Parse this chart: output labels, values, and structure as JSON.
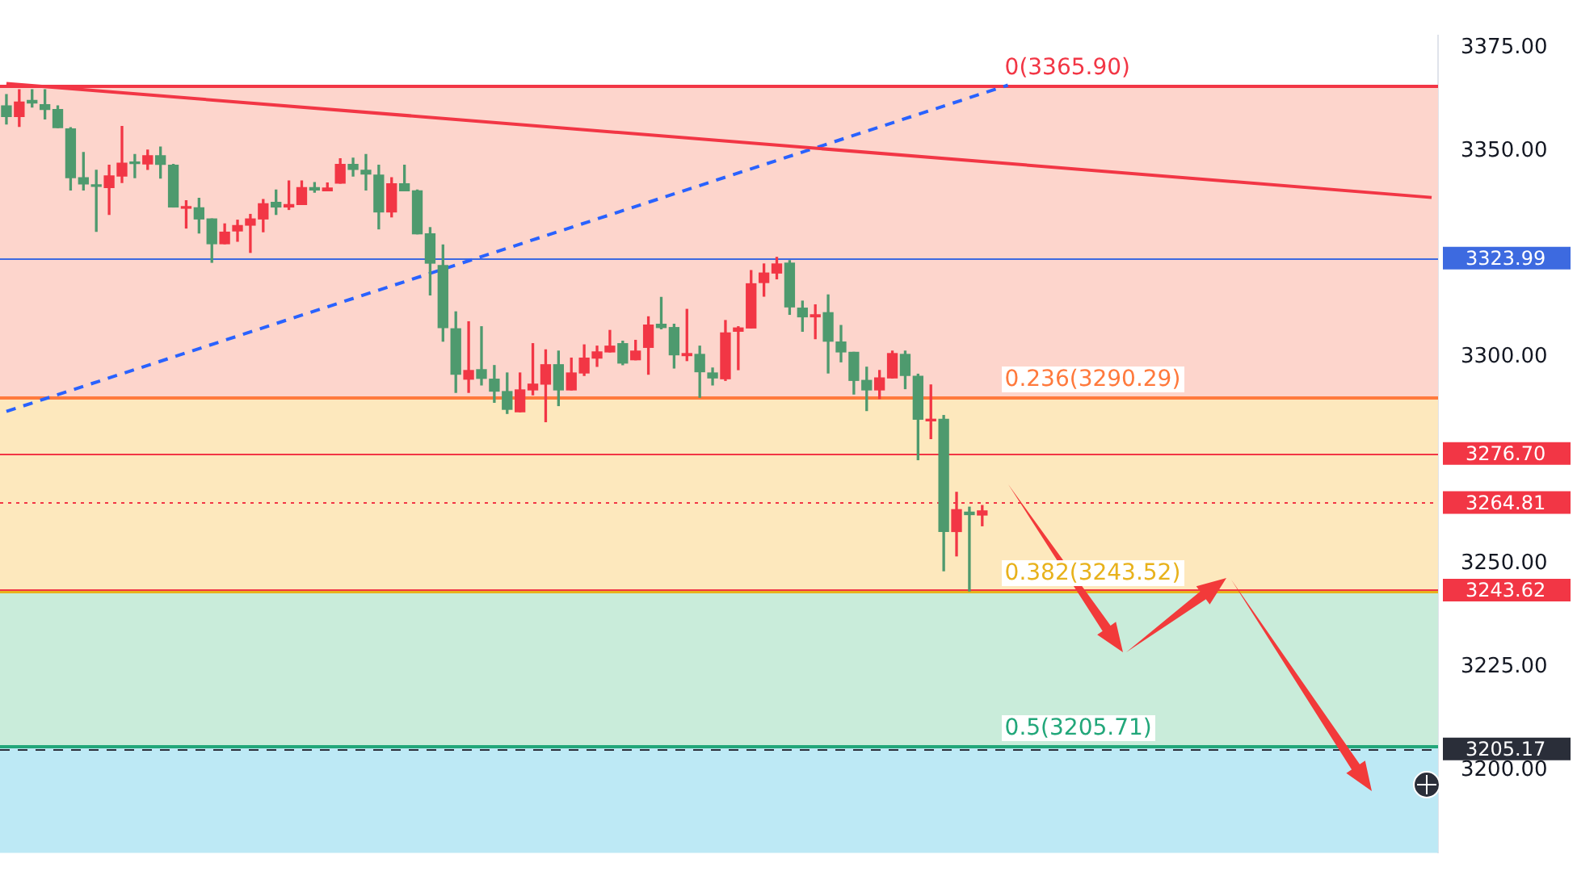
{
  "chart_data": {
    "type": "candlestick",
    "categories": [
      null,
      null,
      null,
      null,
      null,
      null,
      null,
      null,
      null,
      null,
      null,
      null,
      null,
      null,
      null,
      null,
      null,
      null,
      null,
      null,
      null,
      null,
      null,
      null,
      null,
      null,
      null,
      null,
      null,
      null,
      null,
      null,
      null,
      null,
      null,
      null,
      null,
      null,
      null,
      null,
      null,
      null,
      null,
      null,
      null,
      null,
      null,
      null,
      null,
      null,
      null,
      null,
      null,
      null,
      null,
      null,
      null,
      null,
      null,
      null,
      null,
      null,
      null,
      null,
      null,
      null,
      null,
      null,
      null,
      null,
      null,
      null,
      null,
      null,
      null,
      null,
      null,
      null,
      null,
      null,
      null,
      null,
      null,
      null,
      null,
      null,
      null,
      null,
      null,
      null,
      null,
      null,
      null,
      null,
      null,
      null,
      null,
      null,
      null,
      null,
      null,
      null,
      null,
      null,
      null,
      null,
      null,
      null,
      null,
      null,
      null,
      null
    ],
    "ohlc": [
      [
        3360.9,
        3363.6,
        3356.5,
        3358.3
      ],
      [
        3358.3,
        3364.8,
        3355.9,
        3361.8
      ],
      [
        3362.2,
        3364.8,
        3360.6,
        3361.6
      ],
      [
        3361.2,
        3364.8,
        3357.7,
        3360.0
      ],
      [
        3360.0,
        3360.9,
        3355.6,
        3355.6
      ],
      [
        3355.3,
        3355.6,
        3340.5,
        3343.5
      ],
      [
        3343.5,
        3349.6,
        3340.5,
        3342.0
      ],
      [
        3341.7,
        3345.3,
        3330.5,
        3341.4
      ],
      [
        3341.1,
        3346.5,
        3334.6,
        3343.9
      ],
      [
        3343.9,
        3355.9,
        3342.3,
        3347.0
      ],
      [
        3347.3,
        3349.1,
        3343.5,
        3346.9
      ],
      [
        3346.8,
        3350.2,
        3345.5,
        3348.8
      ],
      [
        3348.8,
        3350.9,
        3343.4,
        3346.7
      ],
      [
        3346.5,
        3346.7,
        3336.4,
        3336.4
      ],
      [
        3336.1,
        3337.9,
        3331.3,
        3336.3
      ],
      [
        3336.2,
        3338.5,
        3330.1,
        3333.5
      ],
      [
        3333.5,
        3333.5,
        3323.0,
        3327.5
      ],
      [
        3327.5,
        3332.3,
        3327.5,
        3330.3
      ],
      [
        3330.6,
        3333.2,
        3328.1,
        3331.9
      ],
      [
        3332.0,
        3334.6,
        3325.4,
        3333.5
      ],
      [
        3333.5,
        3338.2,
        3330.4,
        3337.2
      ],
      [
        3337.5,
        3340.5,
        3334.6,
        3336.4
      ],
      [
        3336.4,
        3342.7,
        3335.8,
        3337.0
      ],
      [
        3337.0,
        3342.7,
        3337.0,
        3341.1
      ],
      [
        3341.1,
        3342.3,
        3340.0,
        3340.5
      ],
      [
        3340.3,
        3342.2,
        3340.3,
        3341.0
      ],
      [
        3342.2,
        3348.1,
        3342.2,
        3346.7
      ],
      [
        3346.7,
        3348.2,
        3343.9,
        3345.5
      ],
      [
        3345.3,
        3349.1,
        3340.5,
        3344.4
      ],
      [
        3344.1,
        3346.5,
        3331.1,
        3335.2
      ],
      [
        3335.2,
        3343.5,
        3334.0,
        3342.0
      ],
      [
        3342.0,
        3346.5,
        3340.3,
        3340.3
      ],
      [
        3340.3,
        3340.5,
        3329.9,
        3329.9
      ],
      [
        3329.9,
        3331.4,
        3315.1,
        3322.8
      ],
      [
        3322.2,
        3327.2,
        3303.9,
        3307.2
      ],
      [
        3306.9,
        3311.0,
        3291.5,
        3295.9
      ],
      [
        3294.7,
        3308.6,
        3291.5,
        3296.8
      ],
      [
        3297.0,
        3307.4,
        3293.3,
        3294.9
      ],
      [
        3294.7,
        3298.0,
        3289.1,
        3291.8
      ],
      [
        3291.7,
        3296.2,
        3286.4,
        3287.4
      ],
      [
        3286.8,
        3296.2,
        3286.8,
        3292.1
      ],
      [
        3292.1,
        3303.3,
        3290.9,
        3293.5
      ],
      [
        3293.5,
        3301.8,
        3284.4,
        3298.2
      ],
      [
        3298.2,
        3301.5,
        3288.3,
        3292.1
      ],
      [
        3292.1,
        3299.8,
        3292.1,
        3296.2
      ],
      [
        3296.2,
        3303.0,
        3295.6,
        3299.8
      ],
      [
        3299.8,
        3302.7,
        3297.8,
        3301.3
      ],
      [
        3301.3,
        3306.5,
        3301.3,
        3302.7
      ],
      [
        3303.3,
        3303.9,
        3298.2,
        3298.6
      ],
      [
        3299.4,
        3304.1,
        3299.4,
        3301.5
      ],
      [
        3302.4,
        3309.8,
        3295.9,
        3307.8
      ],
      [
        3308.0,
        3314.5,
        3306.9,
        3307.2
      ],
      [
        3307.2,
        3308.0,
        3297.4,
        3300.6
      ],
      [
        3300.4,
        3311.6,
        3299.2,
        3300.9
      ],
      [
        3300.7,
        3302.7,
        3290.3,
        3296.5
      ],
      [
        3296.2,
        3297.4,
        3293.3,
        3295.0
      ],
      [
        3294.8,
        3308.9,
        3294.4,
        3305.9
      ],
      [
        3306.3,
        3307.4,
        3297.0,
        3307.1
      ],
      [
        3307.1,
        3321.0,
        3307.1,
        3317.8
      ],
      [
        3318.1,
        3322.6,
        3314.8,
        3320.4
      ],
      [
        3320.4,
        3324.2,
        3319.0,
        3322.6
      ],
      [
        3322.8,
        3323.4,
        3310.4,
        3312.2
      ],
      [
        3311.9,
        3313.6,
        3306.3,
        3309.8
      ],
      [
        3309.8,
        3312.7,
        3304.5,
        3310.3
      ],
      [
        3310.8,
        3315.1,
        3296.2,
        3303.9
      ],
      [
        3303.7,
        3307.7,
        3298.9,
        3301.3
      ],
      [
        3301.2,
        3301.2,
        3291.1,
        3294.4
      ],
      [
        3294.4,
        3297.6,
        3287.1,
        3292.1
      ],
      [
        3292.1,
        3296.8,
        3290.0,
        3295.0
      ],
      [
        3295.0,
        3301.5,
        3295.0,
        3300.9
      ],
      [
        3300.7,
        3301.5,
        3292.4,
        3295.6
      ],
      [
        3295.4,
        3295.9,
        3275.2,
        3285.0
      ],
      [
        3284.6,
        3293.3,
        3280.3,
        3285.0
      ],
      [
        3285.0,
        3285.9,
        3248.3,
        3257.8
      ],
      [
        3257.8,
        3267.3,
        3251.9,
        3263.1
      ],
      [
        3262.5,
        3263.7,
        3243.4,
        3261.9
      ],
      [
        3261.8,
        3264.1,
        3259.2,
        3262.8
      ],
      null,
      null,
      null,
      null,
      null,
      null,
      null,
      null,
      null,
      null,
      null,
      null,
      null,
      null,
      null,
      null,
      null,
      null,
      null,
      null,
      null,
      null,
      null,
      null,
      null,
      null,
      null,
      null,
      null,
      null,
      null,
      null,
      null,
      null,
      null
    ],
    "colors": [
      "#4e9a6e",
      "#f23645",
      "#4e9a6e",
      "#4e9a6e",
      "#4e9a6e",
      "#4e9a6e",
      "#4e9a6e",
      "#4e9a6e",
      "#f23645",
      "#f23645",
      "#4e9a6e",
      "#f23645",
      "#4e9a6e",
      "#4e9a6e",
      "#f23645",
      "#4e9a6e",
      "#4e9a6e",
      "#f23645",
      "#f23645",
      "#f23645",
      "#f23645",
      "#4e9a6e",
      "#f23645",
      "#f23645",
      "#4e9a6e",
      "#f23645",
      "#f23645",
      "#4e9a6e",
      "#4e9a6e",
      "#4e9a6e",
      "#f23645",
      "#4e9a6e",
      "#4e9a6e",
      "#4e9a6e",
      "#4e9a6e",
      "#4e9a6e",
      "#f23645",
      "#4e9a6e",
      "#4e9a6e",
      "#4e9a6e",
      "#f23645",
      "#f23645",
      "#f23645",
      "#4e9a6e",
      "#f23645",
      "#f23645",
      "#f23645",
      "#f23645",
      "#4e9a6e",
      "#f23645",
      "#f23645",
      "#4e9a6e",
      "#4e9a6e",
      "#f23645",
      "#4e9a6e",
      "#4e9a6e",
      "#f23645",
      "#f23645",
      "#f23645",
      "#f23645",
      "#f23645",
      "#4e9a6e",
      "#4e9a6e",
      "#f23645",
      "#4e9a6e",
      "#4e9a6e",
      "#4e9a6e",
      "#4e9a6e",
      "#f23645",
      "#f23645",
      "#4e9a6e",
      "#4e9a6e",
      "#f23645",
      "#4e9a6e",
      "#f23645",
      "#4e9a6e",
      "#f23645",
      null,
      null,
      null,
      null,
      null,
      null,
      null,
      null,
      null,
      null,
      null,
      null,
      null,
      null,
      null,
      null,
      null,
      null,
      null,
      null,
      null,
      null,
      null,
      null,
      null,
      null,
      null,
      null,
      null,
      null,
      null,
      null,
      null,
      null,
      null
    ],
    "series": [
      {
        "type": "line",
        "color": "#f23645",
        "values": [
          3366.3,
          null,
          null,
          null,
          null,
          null,
          null,
          null,
          null,
          null,
          null,
          null,
          null,
          null,
          null,
          null,
          null,
          null,
          null,
          null,
          null,
          null,
          null,
          null,
          null,
          null,
          null,
          null,
          null,
          null,
          null,
          null,
          null,
          null,
          null,
          null,
          null,
          null,
          null,
          null,
          null,
          null,
          null,
          null,
          null,
          null,
          null,
          null,
          null,
          null,
          null,
          null,
          null,
          null,
          null,
          null,
          null,
          null,
          null,
          null,
          null,
          null,
          null,
          null,
          null,
          null,
          null,
          null,
          null,
          null,
          null,
          null,
          null,
          null,
          null,
          null,
          null,
          null,
          null,
          null,
          null,
          null,
          null,
          null,
          null,
          null,
          null,
          null,
          null,
          null,
          null,
          null,
          null,
          null,
          null,
          null,
          null,
          null,
          null,
          null,
          null,
          null,
          null,
          null,
          null,
          null,
          null,
          null,
          null,
          null,
          null,
          3338.7
        ]
      },
      {
        "type": "line",
        "color": "#2962ff",
        "line_style": "dashed",
        "values": [
          3286.9,
          null,
          null,
          null,
          null,
          null,
          null,
          null,
          null,
          null,
          null,
          null,
          null,
          null,
          null,
          null,
          null,
          null,
          null,
          null,
          null,
          null,
          null,
          null,
          null,
          null,
          null,
          null,
          null,
          null,
          null,
          null,
          null,
          null,
          null,
          null,
          null,
          null,
          null,
          null,
          null,
          null,
          null,
          null,
          null,
          null,
          null,
          null,
          null,
          null,
          null,
          null,
          null,
          null,
          null,
          null,
          null,
          null,
          null,
          null,
          null,
          null,
          null,
          null,
          null,
          null,
          null,
          null,
          null,
          null,
          null,
          null,
          null,
          null,
          null,
          null,
          null,
          null,
          3365.9,
          null,
          null,
          null,
          null,
          null,
          null,
          null,
          null,
          null,
          null,
          null,
          null,
          null,
          null,
          null,
          null,
          null,
          null,
          null,
          null,
          null,
          null,
          null,
          null,
          null,
          null,
          null,
          null,
          null,
          null,
          null,
          null,
          null
        ]
      }
    ],
    "marker": "none",
    "ylim": [
      3180,
      3378
    ],
    "yticks": [
      {
        "value": 3200,
        "label": "3200.00"
      },
      {
        "value": 3225,
        "label": "3225.00"
      },
      {
        "value": 3250,
        "label": "3250.00"
      },
      {
        "value": 3300,
        "label": "3300.00"
      },
      {
        "value": 3350,
        "label": "3350.00"
      },
      {
        "value": 3375,
        "label": "3375.00"
      }
    ],
    "tick_labels": "y",
    "bands": [
      {
        "axis": "y",
        "from": 3290.29,
        "to": 3365.9,
        "color": "#fdd5cc"
      },
      {
        "axis": "y",
        "from": 3243.52,
        "to": 3290.29,
        "color": "#fde8bd"
      },
      {
        "axis": "y",
        "from": 3205.71,
        "to": 3243.52,
        "color": "#c9ecda"
      },
      {
        "axis": "y",
        "from": 3180,
        "to": 3205.71,
        "color": "#bde9f5"
      }
    ],
    "ref_lines": [
      {
        "axis": "y",
        "value": 3365.9,
        "color": "#f23645"
      },
      {
        "axis": "y",
        "value": 3290.29,
        "color": "#ff7a3d"
      },
      {
        "axis": "y",
        "value": 3243.52,
        "color": "#e8b21c"
      },
      {
        "axis": "y",
        "value": 3205.71,
        "color": "#22a77a"
      },
      {
        "axis": "y",
        "value": 3323.99,
        "label": "3323.99",
        "color": "#3d6ae0"
      },
      {
        "axis": "y",
        "value": 3276.7,
        "label": "3276.70",
        "color": "#f23645"
      },
      {
        "axis": "y",
        "value": 3264.81,
        "label": "3264.81",
        "color": "#f23645",
        "line_style": "dotted"
      },
      {
        "axis": "y",
        "value": 3243.62,
        "label": "3243.62",
        "color": "#f23645"
      },
      {
        "axis": "y",
        "value": 3205.17,
        "label": "3205.17",
        "color": "#2a2e39",
        "line_style": "dashed"
      }
    ],
    "annotations": [
      {
        "text": "0(3365.90)",
        "y": 3365.9
      },
      {
        "text": "0.236(3290.29)",
        "y": 3290.29
      },
      {
        "text": "0.382(3243.52)",
        "y": 3243.52
      },
      {
        "text": "0.5(3205.71)",
        "y": 3205.71
      }
    ]
  }
}
